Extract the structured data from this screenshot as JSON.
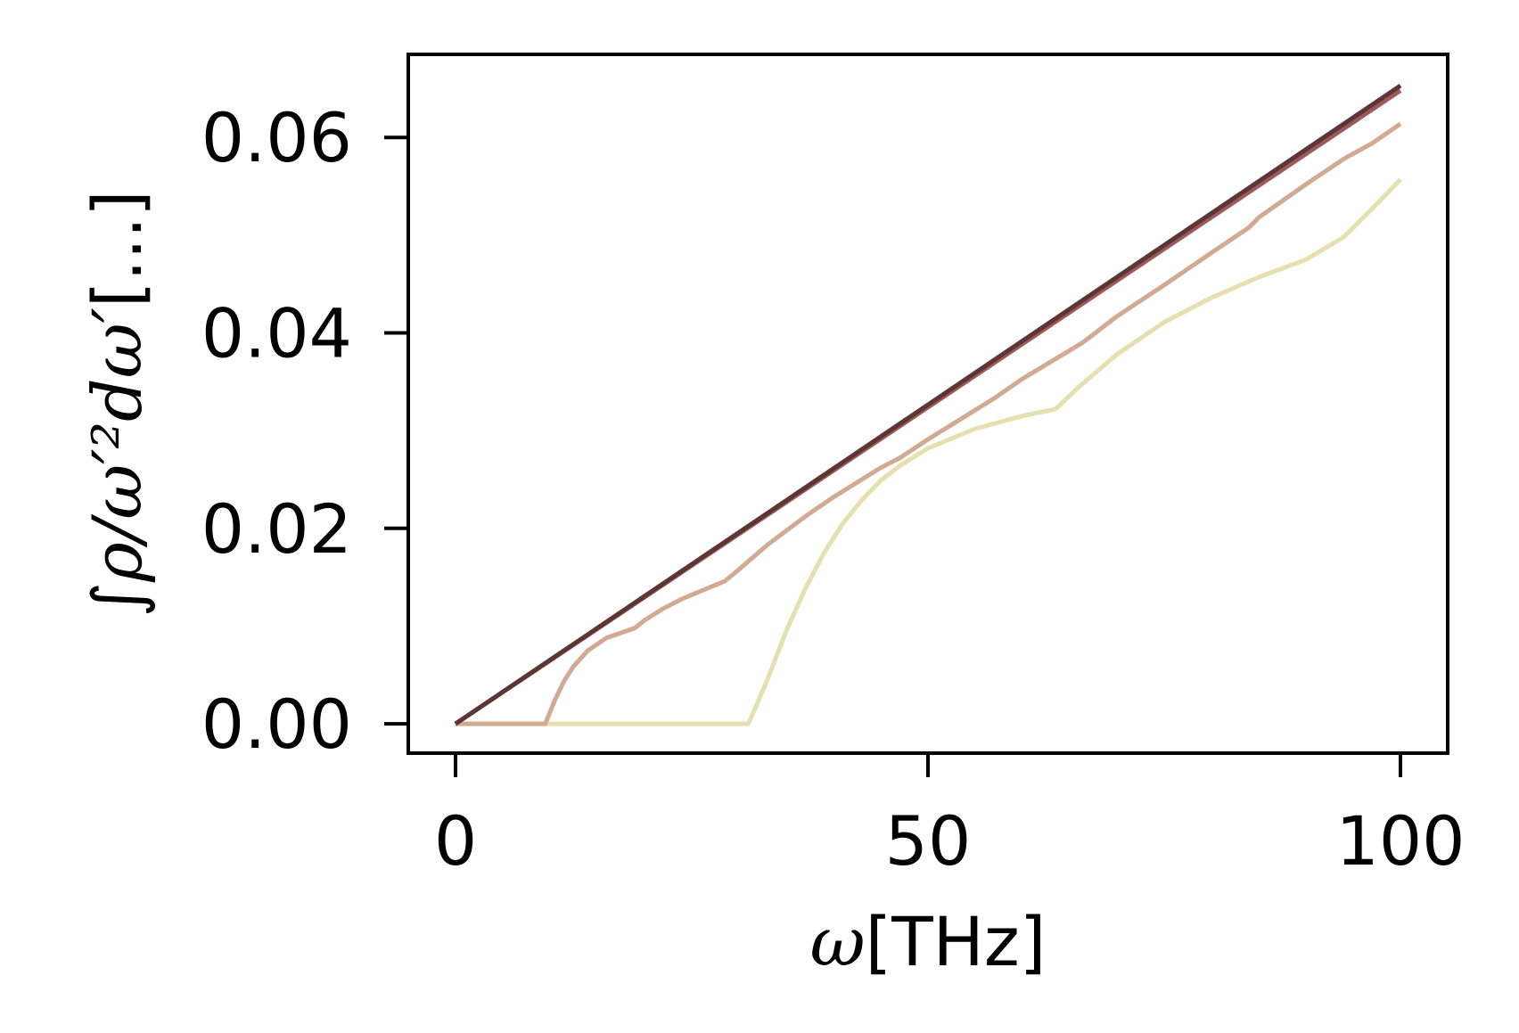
{
  "chart_data": {
    "type": "line",
    "title": "",
    "xlabel": {
      "symbol": "ω",
      "unit": "[THz]"
    },
    "ylabel": {
      "integral": "∫",
      "body": "ρ/ω′²dω′",
      "unit": "[...]"
    },
    "xlim": [
      -5,
      105
    ],
    "ylim": [
      -0.003,
      0.0685
    ],
    "xticks": [
      0,
      50,
      100
    ],
    "xtick_labels": [
      "0",
      "50",
      "100"
    ],
    "yticks": [
      0.0,
      0.02,
      0.04,
      0.06
    ],
    "ytick_labels": [
      "0.00",
      "0.02",
      "0.04",
      "0.06"
    ],
    "grid": false,
    "legend": "none",
    "series": [
      {
        "color": "#e6e0b0",
        "x": [
          0,
          10,
          20,
          31,
          33,
          35,
          37,
          39,
          41,
          43,
          45,
          47,
          50,
          55,
          60,
          63.5,
          66,
          70,
          75,
          80,
          85,
          90,
          94,
          97,
          100
        ],
        "y": [
          0,
          0,
          0,
          0,
          0.0045,
          0.0095,
          0.0138,
          0.0175,
          0.0205,
          0.0229,
          0.0249,
          0.0264,
          0.0282,
          0.0302,
          0.0315,
          0.0322,
          0.0345,
          0.0378,
          0.0411,
          0.0436,
          0.0457,
          0.0475,
          0.0498,
          0.0527,
          0.0557
        ]
      },
      {
        "color": "#d2aa94",
        "x": [
          0,
          5,
          9.5,
          10.5,
          11.5,
          12.5,
          14,
          16,
          19,
          20,
          22,
          24,
          26,
          28.5,
          30,
          33,
          37,
          40,
          45,
          47,
          50,
          55,
          57,
          60,
          65,
          66.5,
          70,
          75,
          80,
          84,
          85,
          90,
          94,
          97,
          100
        ],
        "y": [
          0,
          0,
          0,
          0.0024,
          0.0044,
          0.0059,
          0.0075,
          0.0088,
          0.0098,
          0.0106,
          0.0118,
          0.0128,
          0.0136,
          0.0146,
          0.0158,
          0.0183,
          0.0212,
          0.0232,
          0.0262,
          0.0272,
          0.0291,
          0.0321,
          0.0333,
          0.0353,
          0.0382,
          0.0391,
          0.0417,
          0.0449,
          0.0482,
          0.0508,
          0.0518,
          0.0552,
          0.0578,
          0.0594,
          0.0614
        ]
      },
      {
        "color": "#9e5a5a",
        "x": [
          0,
          100
        ],
        "y": [
          0,
          0.0648
        ]
      },
      {
        "color": "#5c3535",
        "x": [
          0,
          100
        ],
        "y": [
          0,
          0.0653
        ]
      }
    ]
  }
}
